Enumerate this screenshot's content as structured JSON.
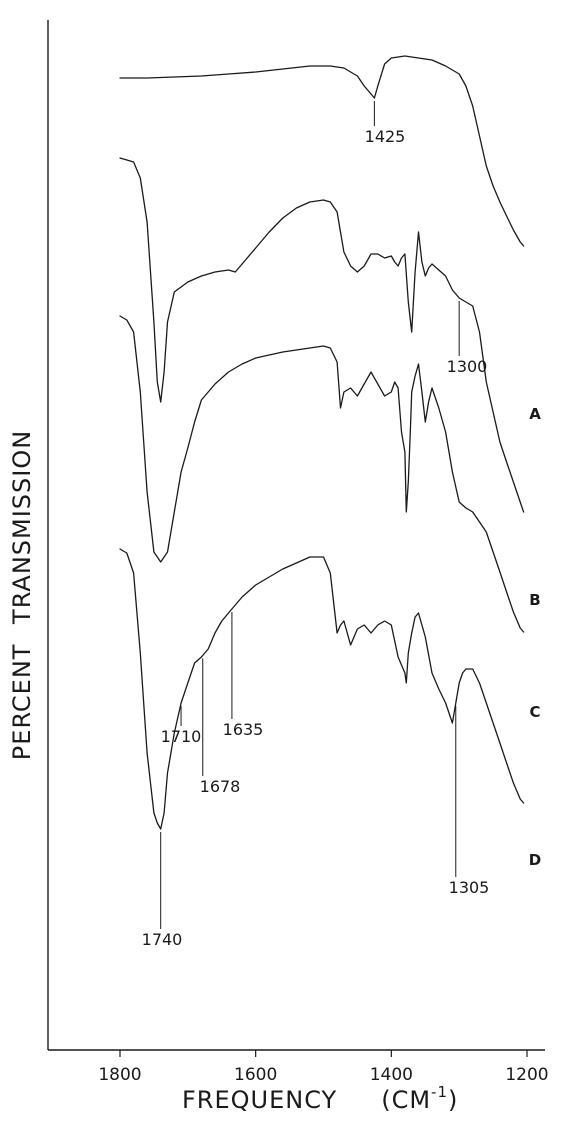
{
  "chart_data": {
    "type": "line",
    "title": "",
    "xlabel": "FREQUENCY",
    "xunit": "(CM",
    "xunit_sup": "-1",
    "xunit_close": ")",
    "ylabel": "PERCENT",
    "ylabel2": "TRANSMISSION",
    "xlim": [
      1900,
      1200
    ],
    "x_ticks": [
      1800,
      1600,
      1400,
      1200
    ],
    "x_tick_labels": [
      "1800",
      "1600",
      "1400",
      "1200"
    ],
    "grid": false,
    "series": [
      {
        "name": "A",
        "x": [
          1800,
          1760,
          1720,
          1680,
          1640,
          1600,
          1560,
          1520,
          1490,
          1470,
          1450,
          1440,
          1430,
          1425,
          1420,
          1410,
          1400,
          1380,
          1360,
          1340,
          1320,
          1300,
          1290,
          1280,
          1270,
          1260,
          1250,
          1240,
          1230,
          1220,
          1210,
          1205
        ],
        "y": [
          16,
          16,
          15.5,
          15,
          14,
          13,
          11.5,
          10,
          10,
          11,
          15,
          20,
          24,
          26,
          20,
          9,
          6,
          5,
          6,
          7,
          10,
          14,
          20,
          30,
          45,
          60,
          70,
          78,
          85,
          92,
          98,
          100
        ]
      },
      {
        "name": "B",
        "x": [
          1800,
          1780,
          1770,
          1760,
          1750,
          1745,
          1740,
          1735,
          1730,
          1720,
          1700,
          1680,
          1660,
          1640,
          1630,
          1620,
          1600,
          1580,
          1560,
          1540,
          1520,
          1500,
          1490,
          1480,
          1470,
          1460,
          1450,
          1440,
          1430,
          1420,
          1410,
          1400,
          1395,
          1390,
          1385,
          1380,
          1375,
          1370,
          1365,
          1360,
          1355,
          1350,
          1345,
          1340,
          1330,
          1320,
          1310,
          1300,
          1290,
          1280,
          1270,
          1260,
          1250,
          1240,
          1230,
          1220,
          1210,
          1205
        ],
        "y": [
          28,
          30,
          38,
          60,
          110,
          140,
          150,
          135,
          110,
          95,
          90,
          87,
          85,
          84,
          85,
          81,
          73,
          65,
          58,
          53,
          50,
          49,
          50,
          55,
          75,
          82,
          85,
          82,
          76,
          76,
          78,
          77,
          80,
          82,
          78,
          76,
          100,
          115,
          85,
          65,
          80,
          87,
          83,
          81,
          84,
          87,
          94,
          98,
          100,
          102,
          115,
          140,
          155,
          170,
          180,
          190,
          200,
          205
        ]
      },
      {
        "name": "C",
        "x": [
          1800,
          1790,
          1780,
          1770,
          1760,
          1750,
          1740,
          1730,
          1720,
          1710,
          1700,
          1690,
          1680,
          1670,
          1660,
          1640,
          1620,
          1600,
          1560,
          1520,
          1500,
          1490,
          1480,
          1475,
          1470,
          1460,
          1450,
          1440,
          1430,
          1420,
          1410,
          1400,
          1395,
          1390,
          1385,
          1380,
          1378,
          1375,
          1372,
          1370,
          1365,
          1360,
          1355,
          1350,
          1345,
          1340,
          1330,
          1320,
          1310,
          1300,
          1290,
          1280,
          1270,
          1260,
          1250,
          1240,
          1230,
          1220,
          1210,
          1205
        ],
        "y": [
          52,
          54,
          60,
          90,
          140,
          170,
          175,
          170,
          150,
          130,
          118,
          105,
          94,
          90,
          86,
          80,
          76,
          73,
          70,
          68,
          67,
          68,
          75,
          98,
          90,
          88,
          92,
          86,
          80,
          86,
          92,
          90,
          85,
          88,
          110,
          120,
          150,
          135,
          110,
          90,
          82,
          76,
          90,
          105,
          95,
          88,
          98,
          110,
          130,
          145,
          148,
          150,
          155,
          160,
          170,
          180,
          190,
          200,
          208,
          210
        ]
      },
      {
        "name": "D",
        "x": [
          1800,
          1790,
          1780,
          1770,
          1760,
          1750,
          1745,
          1740,
          1735,
          1730,
          1720,
          1710,
          1700,
          1690,
          1680,
          1670,
          1660,
          1650,
          1640,
          1630,
          1620,
          1600,
          1580,
          1560,
          1540,
          1520,
          1500,
          1490,
          1480,
          1475,
          1470,
          1460,
          1450,
          1440,
          1430,
          1420,
          1410,
          1400,
          1390,
          1380,
          1378,
          1375,
          1370,
          1365,
          1360,
          1350,
          1340,
          1330,
          1320,
          1315,
          1310,
          1305,
          1300,
          1295,
          1290,
          1280,
          1270,
          1260,
          1250,
          1240,
          1230,
          1220,
          1210,
          1205
        ],
        "y": [
          58,
          60,
          70,
          110,
          160,
          190,
          195,
          198,
          190,
          170,
          150,
          135,
          125,
          115,
          112,
          108,
          100,
          94,
          90,
          86,
          82,
          76,
          72,
          68,
          65,
          62,
          62,
          70,
          100,
          96,
          94,
          106,
          98,
          96,
          100,
          96,
          94,
          96,
          112,
          120,
          125,
          110,
          100,
          92,
          90,
          102,
          120,
          128,
          135,
          140,
          145,
          135,
          125,
          120,
          118,
          118,
          125,
          135,
          145,
          155,
          165,
          175,
          183,
          185
        ]
      }
    ],
    "annotations": [
      {
        "series": "A",
        "x": 1425,
        "label": "1425"
      },
      {
        "series": "B",
        "x": 1300,
        "label": "1300"
      },
      {
        "series": "D",
        "x": 1710,
        "label": "1710"
      },
      {
        "series": "D",
        "x": 1678,
        "label": "1678"
      },
      {
        "series": "D",
        "x": 1635,
        "label": "1635"
      },
      {
        "series": "D",
        "x": 1740,
        "label": "1740"
      },
      {
        "series": "D",
        "x": 1305,
        "label": "1305"
      }
    ]
  }
}
